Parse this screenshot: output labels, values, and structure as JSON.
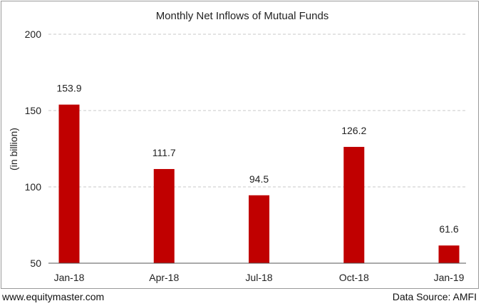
{
  "chart_data": {
    "type": "bar",
    "title": "Monthly Net Inflows of Mutual Funds",
    "ylabel": "(in billion)",
    "xlabel": "",
    "categories": [
      "Jan-18",
      "Apr-18",
      "Jul-18",
      "Oct-18",
      "Jan-19"
    ],
    "values": [
      153.9,
      111.7,
      94.5,
      126.2,
      61.6
    ],
    "value_labels": [
      "153.9",
      "111.7",
      "94.5",
      "126.2",
      "61.6"
    ],
    "ylim": [
      50,
      200
    ],
    "yticks": [
      50,
      100,
      150,
      200
    ],
    "grid": true,
    "legend": "none",
    "bar_color": "#c00000"
  },
  "footer": {
    "website": "www.equitymaster.com",
    "source": "Data Source: AMFI"
  }
}
